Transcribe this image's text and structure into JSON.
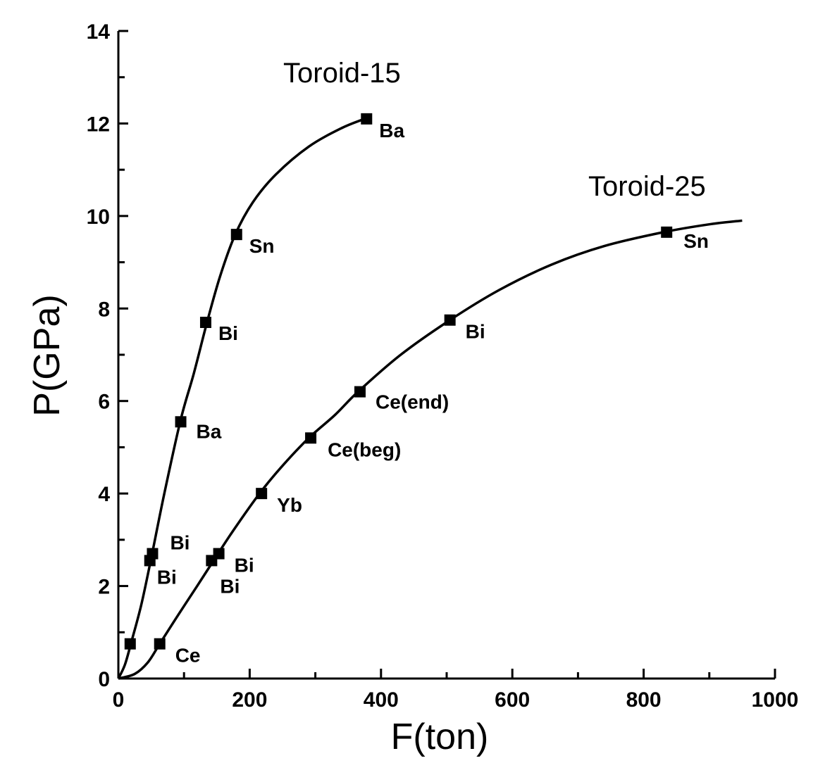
{
  "chart_data": {
    "type": "line",
    "xlabel": "F(ton)",
    "ylabel": "P(GPa)",
    "xlim": [
      0,
      1000
    ],
    "ylim": [
      0,
      14
    ],
    "xticks": [
      0,
      200,
      400,
      600,
      800,
      1000
    ],
    "yticks": [
      0,
      2,
      4,
      6,
      8,
      10,
      12,
      14
    ],
    "grid": false,
    "series": [
      {
        "name": "Toroid-15",
        "curve": [
          [
            0,
            0
          ],
          [
            10,
            0.3
          ],
          [
            20,
            0.8
          ],
          [
            35,
            1.6
          ],
          [
            50,
            2.6
          ],
          [
            70,
            4.0
          ],
          [
            95,
            5.6
          ],
          [
            115,
            6.6
          ],
          [
            135,
            7.7
          ],
          [
            155,
            8.7
          ],
          [
            178,
            9.6
          ],
          [
            205,
            10.3
          ],
          [
            240,
            10.9
          ],
          [
            290,
            11.5
          ],
          [
            340,
            11.9
          ],
          [
            375,
            12.1
          ]
        ],
        "points": [
          {
            "x": 18,
            "y": 0.75,
            "label": ""
          },
          {
            "x": 48,
            "y": 2.55,
            "label": "Bi"
          },
          {
            "x": 52,
            "y": 2.7,
            "label": "Bi"
          },
          {
            "x": 95,
            "y": 5.55,
            "label": "Ba"
          },
          {
            "x": 133,
            "y": 7.7,
            "label": "Bi"
          },
          {
            "x": 180,
            "y": 9.6,
            "label": "Sn"
          },
          {
            "x": 378,
            "y": 12.1,
            "label": "Ba"
          }
        ]
      },
      {
        "name": "Toroid-25",
        "curve": [
          [
            0,
            0
          ],
          [
            25,
            0.1
          ],
          [
            45,
            0.35
          ],
          [
            63,
            0.75
          ],
          [
            90,
            1.35
          ],
          [
            120,
            2.0
          ],
          [
            145,
            2.55
          ],
          [
            175,
            3.2
          ],
          [
            215,
            4.0
          ],
          [
            250,
            4.6
          ],
          [
            290,
            5.2
          ],
          [
            330,
            5.7
          ],
          [
            365,
            6.2
          ],
          [
            430,
            7.0
          ],
          [
            505,
            7.75
          ],
          [
            580,
            8.4
          ],
          [
            660,
            8.95
          ],
          [
            740,
            9.35
          ],
          [
            830,
            9.65
          ],
          [
            900,
            9.82
          ],
          [
            950,
            9.9
          ]
        ],
        "points": [
          {
            "x": 63,
            "y": 0.75,
            "label": "Ce"
          },
          {
            "x": 142,
            "y": 2.55,
            "label": "Bi"
          },
          {
            "x": 153,
            "y": 2.7,
            "label": "Bi"
          },
          {
            "x": 218,
            "y": 4.0,
            "label": "Yb"
          },
          {
            "x": 293,
            "y": 5.2,
            "label": "Ce(beg)"
          },
          {
            "x": 368,
            "y": 6.2,
            "label": "Ce(end)"
          },
          {
            "x": 505,
            "y": 7.75,
            "label": "Bi"
          },
          {
            "x": 835,
            "y": 9.65,
            "label": "Sn"
          }
        ]
      }
    ]
  }
}
